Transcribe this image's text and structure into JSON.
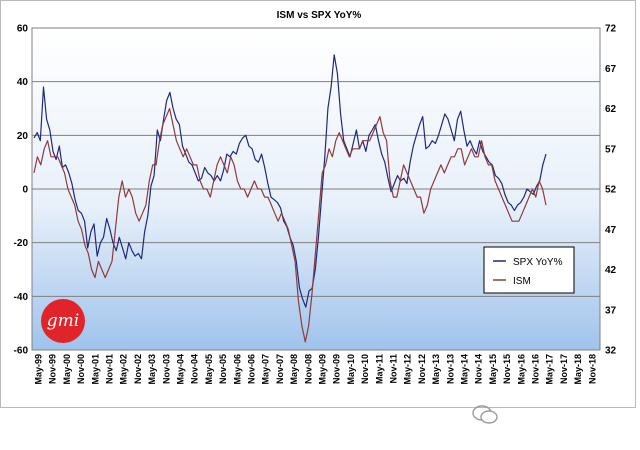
{
  "chart_data": {
    "type": "line",
    "title": "ISM vs SPX YoY%",
    "xlabel": "",
    "ylabel": "",
    "x_tick_labels": [
      "May-99",
      "Nov-99",
      "May-00",
      "Nov-00",
      "May-01",
      "Nov-01",
      "May-02",
      "Nov-02",
      "May-03",
      "Nov-03",
      "May-04",
      "Nov-04",
      "May-05",
      "Nov-05",
      "May-06",
      "Nov-06",
      "May-07",
      "Nov-07",
      "May-08",
      "Nov-08",
      "May-09",
      "Nov-09",
      "May-10",
      "Nov-10",
      "May-11",
      "Nov-11",
      "May-12",
      "Nov-12",
      "May-13",
      "Nov-13",
      "May-14",
      "Nov-14",
      "May-15",
      "Nov-15",
      "May-16",
      "Nov-16",
      "May-17",
      "Nov-17",
      "May-18",
      "Nov-18"
    ],
    "y_left": {
      "min": -60,
      "max": 60,
      "ticks": [
        -60,
        -40,
        -20,
        0,
        20,
        40,
        60
      ]
    },
    "y_right": {
      "min": 32,
      "max": 72,
      "ticks": [
        32,
        37,
        42,
        47,
        52,
        57,
        62,
        67,
        72
      ]
    },
    "legend_position": "bottom-right",
    "grid": true,
    "series": [
      {
        "name": "SPX YoY%",
        "axis": "left",
        "color": "#1f2a7a",
        "values": [
          19,
          21,
          18,
          38,
          26,
          22,
          14,
          11,
          16,
          8,
          9,
          6,
          2,
          -4,
          -8,
          -9,
          -12,
          -22,
          -16,
          -13,
          -25,
          -20,
          -18,
          -11,
          -15,
          -20,
          -23,
          -18,
          -22,
          -26,
          -20,
          -23,
          -25,
          -24,
          -26,
          -16,
          -10,
          1,
          5,
          22,
          18,
          26,
          33,
          36,
          30,
          26,
          24,
          16,
          13,
          10,
          9,
          6,
          3,
          4,
          8,
          6,
          5,
          3,
          5,
          3,
          7,
          13,
          12,
          14,
          13,
          17,
          19,
          20,
          16,
          15,
          11,
          10,
          13,
          8,
          2,
          -3,
          -4,
          -5,
          -7,
          -12,
          -14,
          -18,
          -21,
          -27,
          -37,
          -41,
          -44,
          -38,
          -37,
          -30,
          -18,
          -3,
          12,
          30,
          38,
          50,
          43,
          28,
          18,
          15,
          12,
          17,
          22,
          15,
          18,
          14,
          20,
          22,
          24,
          18,
          13,
          10,
          4,
          -1,
          2,
          5,
          3,
          4,
          2,
          10,
          16,
          20,
          24,
          27,
          15,
          16,
          18,
          17,
          20,
          24,
          28,
          26,
          22,
          18,
          26,
          29,
          22,
          16,
          18,
          15,
          13,
          18,
          14,
          12,
          10,
          9,
          5,
          4,
          2,
          -2,
          -5,
          -6,
          -8,
          -6,
          -5,
          -3,
          0,
          -1,
          -2,
          1,
          3,
          9,
          13
        ]
      },
      {
        "name": "ISM",
        "axis": "right",
        "color": "#8e3b3b",
        "values": [
          54,
          56,
          55,
          57,
          58,
          56,
          56,
          56,
          55,
          54,
          52,
          51,
          50,
          48,
          47,
          45,
          44,
          42,
          41,
          43,
          42,
          41,
          42,
          43,
          47,
          51,
          53,
          51,
          52,
          51,
          49,
          48,
          49,
          50,
          53,
          55,
          55,
          58,
          60,
          61,
          62,
          60,
          58,
          57,
          56,
          57,
          56,
          55,
          55,
          53,
          52,
          52,
          51,
          53,
          55,
          56,
          55,
          54,
          56,
          55,
          53,
          52,
          52,
          51,
          52,
          53,
          52,
          52,
          51,
          51,
          50,
          49,
          48,
          49,
          48,
          47,
          45,
          43,
          38,
          35,
          33,
          35,
          39,
          44,
          49,
          54,
          55,
          57,
          56,
          58,
          59,
          58,
          57,
          56,
          57,
          57,
          57,
          58,
          58,
          58,
          59,
          60,
          61,
          59,
          58,
          53,
          51,
          51,
          53,
          55,
          54,
          53,
          52,
          51,
          51,
          49,
          50,
          52,
          53,
          54,
          55,
          54,
          55,
          56,
          56,
          57,
          57,
          55,
          56,
          57,
          56,
          56,
          58,
          56,
          55,
          55,
          53,
          52,
          51,
          50,
          49,
          48,
          48,
          48,
          49,
          50,
          51,
          52,
          51,
          53,
          52,
          50
        ]
      }
    ]
  }
}
